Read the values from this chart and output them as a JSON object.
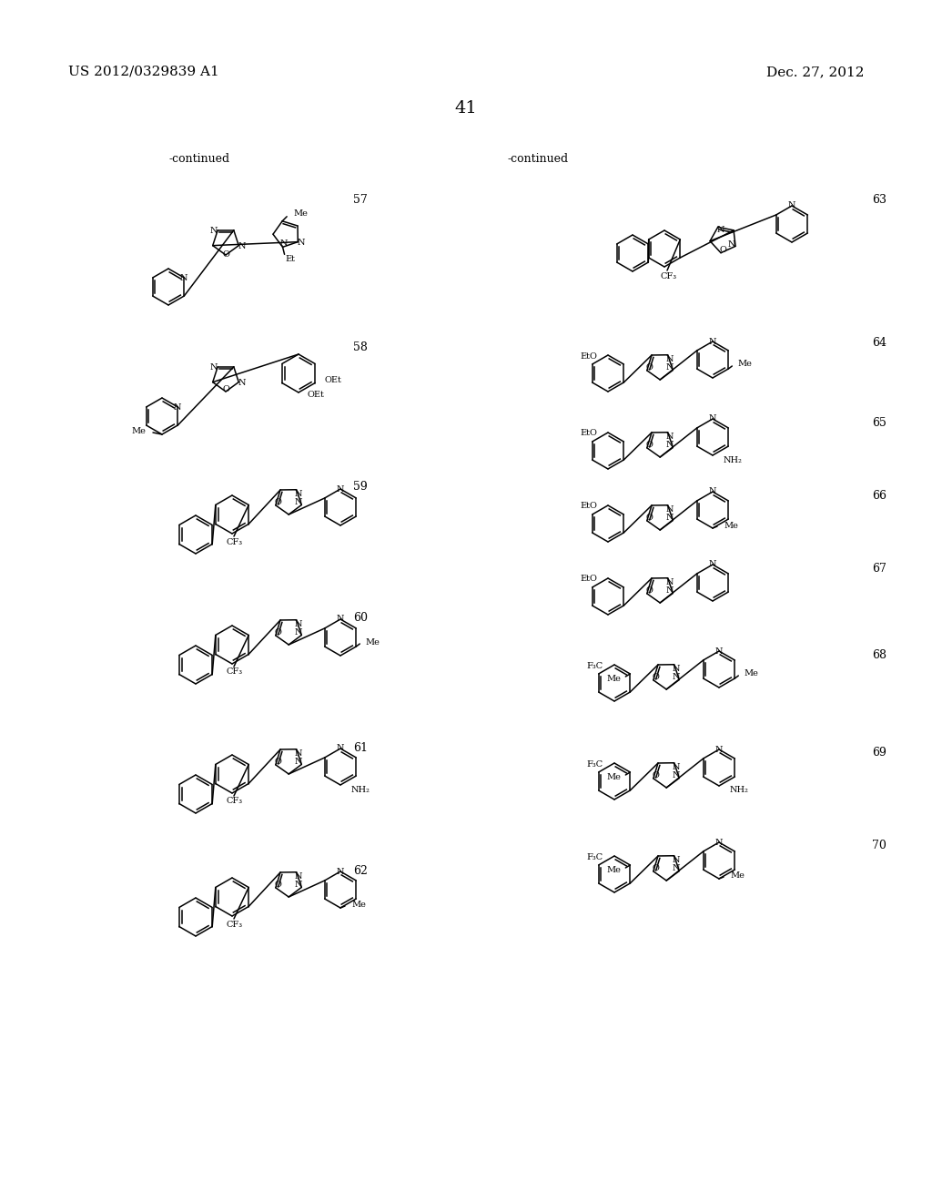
{
  "background_color": "#ffffff",
  "header_left": "US 2012/0329839 A1",
  "header_right": "Dec. 27, 2012",
  "page_number": "41",
  "continued_left": "-continued",
  "continued_right": "-continued",
  "font_size_header": 11,
  "font_size_page": 14,
  "font_size_compound": 9,
  "font_size_continued": 9,
  "font_size_atom": 7
}
